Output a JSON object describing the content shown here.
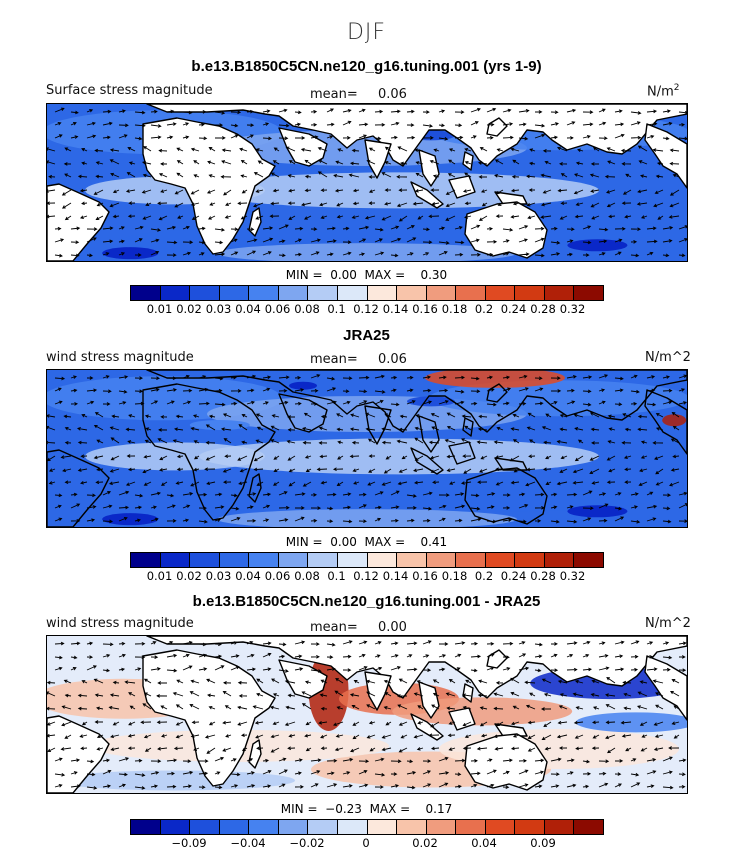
{
  "figure": {
    "season": "DJF"
  },
  "palette": [
    "#00008c",
    "#0a28c8",
    "#1e50dc",
    "#2d68e6",
    "#4682f0",
    "#7ea6f0",
    "#b4ccf5",
    "#dce8f9",
    "#fce8dc",
    "#f8c4aa",
    "#f09c7e",
    "#e8704e",
    "#e04a22",
    "#d23a12",
    "#b02008",
    "#8c0a00"
  ],
  "land_color": "#ffffff",
  "panels": [
    {
      "title": "b.e13.B1850C5CN.ne120_g16.tuning.001 (yrs 1-9)",
      "left_label": "Surface stress magnitude",
      "mean_label": "mean=",
      "mean_value": "0.06",
      "units": "N/m",
      "units_sup": "2",
      "min_label": "MIN =",
      "min_value": "0.00",
      "max_label": "MAX =",
      "max_value": "0.30",
      "colorbar_ticks": [
        "0.01",
        "0.02",
        "0.03",
        "0.04",
        "0.06",
        "0.08",
        "0.1",
        "0.12",
        "0.14",
        "0.16",
        "0.18",
        "0.2",
        "0.24",
        "0.28",
        "0.32"
      ],
      "tick_start": 1,
      "bg_color": "#2d68e6"
    },
    {
      "title": "JRA25",
      "left_label": "wind stress magnitude",
      "mean_label": "mean=",
      "mean_value": "0.06",
      "units": "N/m^2",
      "units_sup": "",
      "min_label": "MIN =",
      "min_value": "0.00",
      "max_label": "MAX =",
      "max_value": "0.41",
      "colorbar_ticks": [
        "0.01",
        "0.02",
        "0.03",
        "0.04",
        "0.06",
        "0.08",
        "0.1",
        "0.12",
        "0.14",
        "0.16",
        "0.18",
        "0.2",
        "0.24",
        "0.28",
        "0.32"
      ],
      "tick_start": 1,
      "bg_color": "#2d68e6"
    },
    {
      "title": "b.e13.B1850C5CN.ne120_g16.tuning.001 - JRA25",
      "left_label": "wind stress magnitude",
      "mean_label": "mean=",
      "mean_value": "0.00",
      "units": "N/m^2",
      "units_sup": "",
      "min_label": "MIN =",
      "min_value": "−0.23",
      "max_label": "MAX =",
      "max_value": "0.17",
      "colorbar_ticks": [
        "−0.09",
        "−0.04",
        "−0.02",
        "0",
        "0.02",
        "0.04",
        "0.09"
      ],
      "tick_start": 2,
      "tick_step": 2,
      "bg_color": "#e4ecfa"
    }
  ]
}
